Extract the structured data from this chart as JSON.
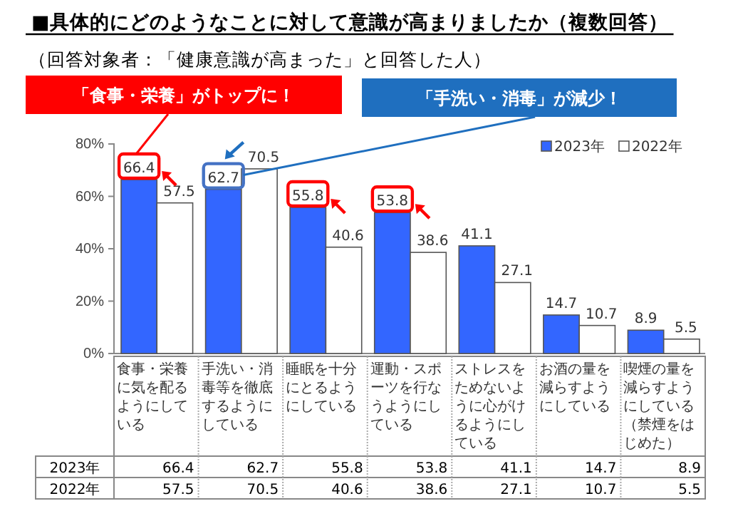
{
  "chart_data": {
    "type": "bar",
    "title": "■具体的にどのようなことに対して意識が高まりましたか（複数回答）",
    "subtitle": "（回答対象者：「健康意識が高まった」と回答した人）",
    "categories": [
      "食事・栄養に気を配るようにしている",
      "手洗い・消毒等を徹底するようにしている",
      "睡眠を十分にとるようにしている",
      "運動・スポーツを行なうようにしている",
      "ストレスをためないように心がけるようにしている",
      "お酒の量を減らすようにしている",
      "喫煙の量を減らすようにしている（禁煙をはじめた）"
    ],
    "series": [
      {
        "name": "2023年",
        "color": "#3366ff",
        "values": [
          66.4,
          62.7,
          55.8,
          53.8,
          41.1,
          14.7,
          8.9
        ]
      },
      {
        "name": "2022年",
        "color": "#ffffff",
        "values": [
          57.5,
          70.5,
          40.6,
          38.6,
          27.1,
          10.7,
          5.5
        ]
      }
    ],
    "ylim": [
      0,
      80
    ],
    "yticks": [
      {
        "value": 0,
        "label": "0%"
      },
      {
        "value": 20,
        "label": "20%"
      },
      {
        "value": 40,
        "label": "40%"
      },
      {
        "value": 60,
        "label": "60%"
      },
      {
        "value": 80,
        "label": "80%"
      }
    ],
    "grid": false,
    "legend": "top right",
    "data_labels": true,
    "annotations": [
      "「食事・栄養」がトップに！",
      "「手洗い・消毒」が減少！",
      {
        "text": "66.4",
        "x": "食事・栄養に気を配るようにしている",
        "y": 66.4
      },
      {
        "text": "57.5",
        "x": "食事・栄養に気を配るようにしている",
        "y": 57.5
      },
      {
        "text": "62.7",
        "x": "手洗い・消毒等を徹底するようにしている",
        "y": 62.7
      },
      {
        "text": "70.5",
        "x": "手洗い・消毒等を徹底するようにしている",
        "y": 70.5
      },
      {
        "text": "55.8",
        "x": "睡眠を十分にとるようにしている",
        "y": 55.8
      },
      {
        "text": "40.6",
        "x": "睡眠を十分にとるようにしている",
        "y": 40.6
      },
      {
        "text": "53.8",
        "x": "運動・スポーツを行なうようにしている",
        "y": 53.8
      },
      {
        "text": "38.6",
        "x": "運動・スポーツを行なうようにしている",
        "y": 38.6
      },
      {
        "text": "41.1",
        "x": "ストレスをためないように心がけるようにしている",
        "y": 41.1
      },
      {
        "text": "27.1",
        "x": "ストレスをためないように心がけるようにしている",
        "y": 27.1
      },
      {
        "text": "14.7",
        "x": "お酒の量を減らすようにしている",
        "y": 14.7
      },
      {
        "text": "10.7",
        "x": "お酒の量を減らすようにしている",
        "y": 10.7
      },
      {
        "text": "8.9",
        "x": "喫煙の量を減らすようにしている（禁煙をはじめた）",
        "y": 8.9
      },
      {
        "text": "5.5",
        "x": "喫煙の量を減らすようにしている（禁煙をはじめた）",
        "y": 5.5
      }
    ]
  }
}
